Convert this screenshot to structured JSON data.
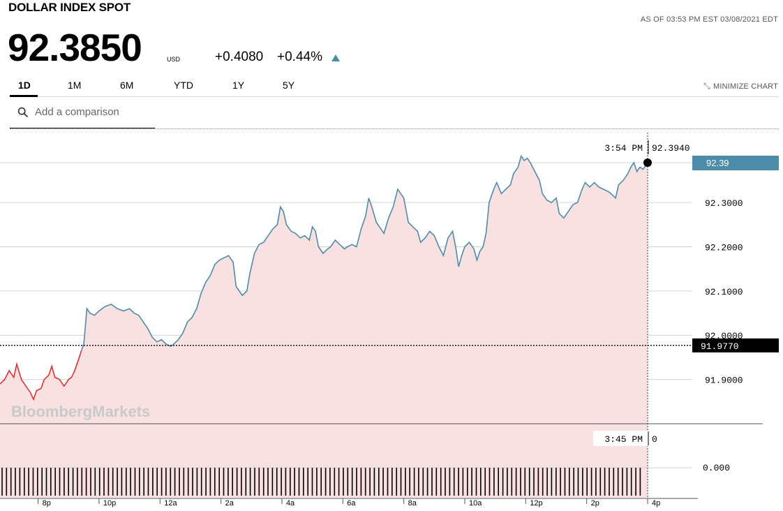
{
  "header": {
    "title": "DOLLAR INDEX SPOT",
    "as_of": "AS OF 03:53 PM EST 03/08/2021 EDT",
    "price": "92.3850",
    "currency": "USD",
    "change": "+0.4080",
    "change_pct": "+0.44%",
    "direction_icon": "triangle-up-icon",
    "direction_color": "#4d8ca9"
  },
  "tabs": [
    {
      "label": "1D",
      "active": true
    },
    {
      "label": "1M",
      "active": false
    },
    {
      "label": "6M",
      "active": false
    },
    {
      "label": "YTD",
      "active": false
    },
    {
      "label": "1Y",
      "active": false
    },
    {
      "label": "5Y",
      "active": false
    }
  ],
  "minimize_label": "MINIMIZE CHART",
  "search": {
    "placeholder": "Add a comparison"
  },
  "watermark": "BloombergMarkets",
  "colors": {
    "line_above": "#4d8ca9",
    "line_below": "#e03030",
    "fill": "#f9e1e1",
    "last_label_bg": "#4d8ca9",
    "prev_close_bg": "#000000"
  },
  "chart_data": {
    "type": "line",
    "ylim": [
      91.8,
      92.45
    ],
    "y_ticks": [
      "92.3000",
      "92.2000",
      "92.1000",
      "92.0000",
      "91.9000"
    ],
    "y_tick_values": [
      92.3,
      92.2,
      92.1,
      92.0,
      91.9
    ],
    "x_ticks": [
      "8p",
      "10p",
      "12a",
      "2a",
      "4a",
      "6a",
      "8a",
      "10a",
      "12p",
      "2p",
      "4p"
    ],
    "x_tick_hours": [
      20,
      22,
      24,
      26,
      28,
      30,
      32,
      34,
      36,
      38,
      40
    ],
    "x_range_hours": [
      18.75,
      40.0
    ],
    "previous_close": "91.9770",
    "previous_close_value": 91.977,
    "last_value_label": "92.39",
    "last_value": 92.39,
    "crosshair_time": "3:54 PM",
    "crosshair_value": "92.3940",
    "series": [
      {
        "points": [
          [
            18.75,
            91.89
          ],
          [
            18.9,
            91.9
          ],
          [
            19.05,
            91.92
          ],
          [
            19.2,
            91.905
          ],
          [
            19.3,
            91.935
          ],
          [
            19.45,
            91.9
          ],
          [
            19.6,
            91.885
          ],
          [
            19.75,
            91.87
          ],
          [
            19.85,
            91.855
          ],
          [
            19.95,
            91.875
          ],
          [
            20.1,
            91.88
          ],
          [
            20.2,
            91.9
          ],
          [
            20.35,
            91.91
          ],
          [
            20.45,
            91.93
          ],
          [
            20.55,
            91.905
          ],
          [
            20.7,
            91.9
          ],
          [
            20.85,
            91.885
          ],
          [
            21.0,
            91.9
          ],
          [
            21.1,
            91.905
          ],
          [
            21.2,
            91.92
          ],
          [
            21.3,
            91.94
          ],
          [
            21.42,
            91.965
          ],
          [
            21.5,
            91.98
          ],
          [
            21.6,
            92.06
          ],
          [
            21.7,
            92.05
          ],
          [
            21.85,
            92.045
          ],
          [
            22.0,
            92.055
          ],
          [
            22.2,
            92.065
          ],
          [
            22.4,
            92.07
          ],
          [
            22.6,
            92.06
          ],
          [
            22.8,
            92.055
          ],
          [
            23.0,
            92.06
          ],
          [
            23.15,
            92.05
          ],
          [
            23.3,
            92.045
          ],
          [
            23.45,
            92.03
          ],
          [
            23.6,
            92.015
          ],
          [
            23.75,
            91.995
          ],
          [
            23.9,
            91.985
          ],
          [
            24.05,
            91.99
          ],
          [
            24.2,
            91.98
          ],
          [
            24.35,
            91.975
          ],
          [
            24.45,
            91.98
          ],
          [
            24.6,
            91.99
          ],
          [
            24.75,
            92.005
          ],
          [
            24.9,
            92.03
          ],
          [
            25.05,
            92.04
          ],
          [
            25.2,
            92.06
          ],
          [
            25.35,
            92.095
          ],
          [
            25.5,
            92.12
          ],
          [
            25.65,
            92.135
          ],
          [
            25.8,
            92.16
          ],
          [
            25.95,
            92.17
          ],
          [
            26.1,
            92.175
          ],
          [
            26.25,
            92.18
          ],
          [
            26.4,
            92.165
          ],
          [
            26.5,
            92.11
          ],
          [
            26.6,
            92.1
          ],
          [
            26.7,
            92.09
          ],
          [
            26.85,
            92.1
          ],
          [
            26.95,
            92.14
          ],
          [
            27.1,
            92.185
          ],
          [
            27.25,
            92.205
          ],
          [
            27.4,
            92.21
          ],
          [
            27.55,
            92.225
          ],
          [
            27.7,
            92.24
          ],
          [
            27.85,
            92.25
          ],
          [
            27.95,
            92.29
          ],
          [
            28.05,
            92.28
          ],
          [
            28.15,
            92.25
          ],
          [
            28.3,
            92.235
          ],
          [
            28.45,
            92.23
          ],
          [
            28.6,
            92.22
          ],
          [
            28.75,
            92.225
          ],
          [
            28.9,
            92.215
          ],
          [
            29.0,
            92.245
          ],
          [
            29.1,
            92.235
          ],
          [
            29.2,
            92.2
          ],
          [
            29.35,
            92.185
          ],
          [
            29.5,
            92.195
          ],
          [
            29.6,
            92.2
          ],
          [
            29.75,
            92.215
          ],
          [
            29.9,
            92.205
          ],
          [
            30.05,
            92.195
          ],
          [
            30.15,
            92.2
          ],
          [
            30.3,
            92.205
          ],
          [
            30.45,
            92.2
          ],
          [
            30.6,
            92.24
          ],
          [
            30.75,
            92.27
          ],
          [
            30.85,
            92.31
          ],
          [
            30.95,
            92.29
          ],
          [
            31.1,
            92.255
          ],
          [
            31.25,
            92.24
          ],
          [
            31.35,
            92.23
          ],
          [
            31.5,
            92.265
          ],
          [
            31.65,
            92.29
          ],
          [
            31.8,
            92.33
          ],
          [
            31.9,
            92.32
          ],
          [
            32.0,
            92.31
          ],
          [
            32.15,
            92.255
          ],
          [
            32.3,
            92.245
          ],
          [
            32.45,
            92.235
          ],
          [
            32.55,
            92.21
          ],
          [
            32.7,
            92.22
          ],
          [
            32.85,
            92.235
          ],
          [
            33.0,
            92.225
          ],
          [
            33.15,
            92.2
          ],
          [
            33.3,
            92.18
          ],
          [
            33.45,
            92.22
          ],
          [
            33.6,
            92.235
          ],
          [
            33.7,
            92.2
          ],
          [
            33.8,
            92.155
          ],
          [
            33.9,
            92.18
          ],
          [
            34.0,
            92.2
          ],
          [
            34.15,
            92.21
          ],
          [
            34.3,
            92.195
          ],
          [
            34.4,
            92.17
          ],
          [
            34.5,
            92.19
          ],
          [
            34.6,
            92.2
          ],
          [
            34.7,
            92.23
          ],
          [
            34.8,
            92.3
          ],
          [
            34.95,
            92.33
          ],
          [
            35.05,
            92.345
          ],
          [
            35.2,
            92.32
          ],
          [
            35.35,
            92.33
          ],
          [
            35.5,
            92.34
          ],
          [
            35.6,
            92.365
          ],
          [
            35.75,
            92.38
          ],
          [
            35.85,
            92.405
          ],
          [
            35.95,
            92.395
          ],
          [
            36.05,
            92.4
          ],
          [
            36.15,
            92.39
          ],
          [
            36.3,
            92.37
          ],
          [
            36.45,
            92.35
          ],
          [
            36.55,
            92.32
          ],
          [
            36.7,
            92.305
          ],
          [
            36.85,
            92.3
          ],
          [
            37.0,
            92.31
          ],
          [
            37.1,
            92.275
          ],
          [
            37.25,
            92.265
          ],
          [
            37.4,
            92.28
          ],
          [
            37.55,
            92.295
          ],
          [
            37.7,
            92.3
          ],
          [
            37.85,
            92.33
          ],
          [
            37.95,
            92.345
          ],
          [
            38.1,
            92.335
          ],
          [
            38.25,
            92.345
          ],
          [
            38.4,
            92.335
          ],
          [
            38.55,
            92.33
          ],
          [
            38.7,
            92.325
          ],
          [
            38.8,
            92.32
          ],
          [
            38.95,
            92.31
          ],
          [
            39.05,
            92.34
          ],
          [
            39.2,
            92.35
          ],
          [
            39.35,
            92.365
          ],
          [
            39.45,
            92.38
          ],
          [
            39.55,
            92.39
          ],
          [
            39.65,
            92.37
          ],
          [
            39.75,
            92.38
          ],
          [
            39.85,
            92.375
          ],
          [
            39.95,
            92.385
          ],
          [
            40.0,
            92.39
          ]
        ]
      }
    ],
    "volume": {
      "crosshair_time": "3:45 PM",
      "crosshair_value": "0",
      "y_tick": "0.000"
    }
  }
}
